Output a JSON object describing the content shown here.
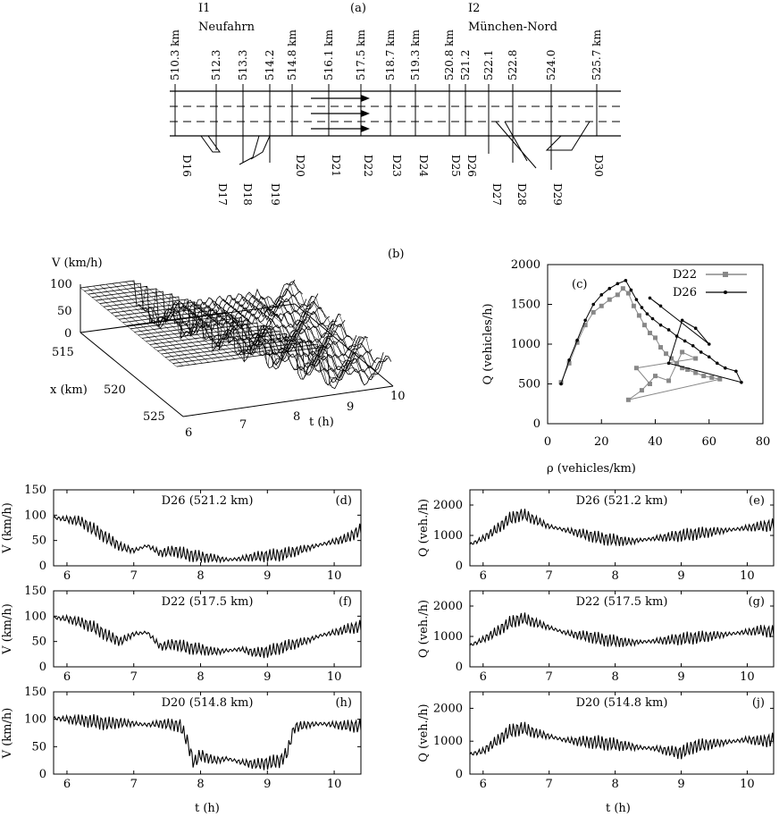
{
  "chart_data": [
    {
      "panel": "(a)",
      "type": "table",
      "intersections": [
        {
          "name": "I1",
          "label": "Neufahrn"
        },
        {
          "name": "I2",
          "label": "München-Nord"
        }
      ],
      "km_labels": [
        "510.3 km",
        "512.3",
        "513.3",
        "514.2",
        "514.8 km",
        "516.1 km",
        "517.5 km",
        "518.7 km",
        "519.3 km",
        "520.8 km",
        "521.2",
        "522.1",
        "522.8",
        "524.0",
        "525.7 km"
      ],
      "detectors": [
        "D16",
        "D17",
        "D18",
        "D19",
        "D20",
        "D21",
        "D22",
        "D23",
        "D24",
        "D25",
        "D26",
        "D27",
        "D28",
        "D29",
        "D30"
      ]
    },
    {
      "panel": "(b)",
      "type": "area",
      "zlabel": "V (km/h)",
      "ylabel": "x (km)",
      "xlabel": "t (h)",
      "z_ticks": [
        "0",
        "50",
        "100"
      ],
      "y_ticks": [
        "515",
        "520",
        "525"
      ],
      "x_ticks": [
        "6",
        "7",
        "8",
        "9",
        "10"
      ]
    },
    {
      "panel": "(c)",
      "type": "scatter",
      "xlabel": "ρ (vehicles/km)",
      "ylabel": "Q (vehicles/h)",
      "xlim": [
        0,
        80
      ],
      "ylim": [
        0,
        2000
      ],
      "x_ticks": [
        "0",
        "20",
        "40",
        "60",
        "80"
      ],
      "y_ticks": [
        "0",
        "500",
        "1000",
        "1500",
        "2000"
      ],
      "legend": "top-right",
      "series": [
        {
          "name": "D22",
          "color": "#888888",
          "points": [
            [
              5,
              520
            ],
            [
              8,
              760
            ],
            [
              11,
              1020
            ],
            [
              14,
              1240
            ],
            [
              17,
              1400
            ],
            [
              20,
              1480
            ],
            [
              23,
              1560
            ],
            [
              26,
              1620
            ],
            [
              28,
              1700
            ],
            [
              30,
              1640
            ],
            [
              32,
              1480
            ],
            [
              34,
              1360
            ],
            [
              36,
              1240
            ],
            [
              38,
              1140
            ],
            [
              40,
              1080
            ],
            [
              42,
              960
            ],
            [
              44,
              880
            ],
            [
              46,
              820
            ],
            [
              48,
              760
            ],
            [
              50,
              700
            ],
            [
              52,
              680
            ],
            [
              55,
              640
            ],
            [
              58,
              600
            ],
            [
              61,
              580
            ],
            [
              64,
              560
            ],
            [
              30,
              300
            ],
            [
              35,
              420
            ],
            [
              40,
              600
            ],
            [
              45,
              540
            ],
            [
              50,
              900
            ],
            [
              55,
              820
            ],
            [
              33,
              700
            ],
            [
              38,
              500
            ]
          ]
        },
        {
          "name": "D26",
          "color": "#000000",
          "points": [
            [
              5,
              500
            ],
            [
              8,
              800
            ],
            [
              11,
              1050
            ],
            [
              14,
              1300
            ],
            [
              17,
              1500
            ],
            [
              20,
              1620
            ],
            [
              23,
              1700
            ],
            [
              26,
              1760
            ],
            [
              29,
              1800
            ],
            [
              31,
              1680
            ],
            [
              33,
              1560
            ],
            [
              35,
              1460
            ],
            [
              37,
              1380
            ],
            [
              39,
              1320
            ],
            [
              42,
              1240
            ],
            [
              45,
              1180
            ],
            [
              48,
              1100
            ],
            [
              51,
              1040
            ],
            [
              54,
              980
            ],
            [
              57,
              900
            ],
            [
              60,
              840
            ],
            [
              63,
              760
            ],
            [
              66,
              700
            ],
            [
              70,
              660
            ],
            [
              72,
              520
            ],
            [
              45,
              760
            ],
            [
              50,
              1300
            ],
            [
              55,
              1200
            ],
            [
              60,
              1000
            ],
            [
              38,
              1580
            ],
            [
              42,
              1480
            ]
          ]
        }
      ]
    },
    {
      "panel": "(d)",
      "type": "line",
      "title": "D26 (521.2 km)",
      "ylabel": "V (km/h)",
      "xlabel": "",
      "xlim": [
        5.8,
        10.4
      ],
      "ylim": [
        0,
        150
      ],
      "y_ticks": [
        "0",
        "50",
        "100",
        "150"
      ],
      "x_ticks": [
        "6",
        "7",
        "8",
        "9",
        "10"
      ],
      "x": [
        5.8,
        6.0,
        6.2,
        6.4,
        6.6,
        6.8,
        7.0,
        7.2,
        7.4,
        7.6,
        7.8,
        8.0,
        8.2,
        8.4,
        8.6,
        8.8,
        9.0,
        9.2,
        9.4,
        9.6,
        9.8,
        10.0,
        10.2,
        10.4
      ],
      "y": [
        95,
        92,
        88,
        72,
        55,
        38,
        30,
        40,
        25,
        30,
        22,
        18,
        15,
        12,
        14,
        18,
        20,
        22,
        28,
        35,
        42,
        48,
        55,
        72
      ]
    },
    {
      "panel": "(e)",
      "type": "line",
      "title": "D26 (521.2 km)",
      "ylabel": "Q (veh./h)",
      "xlabel": "",
      "xlim": [
        5.8,
        10.4
      ],
      "ylim": [
        0,
        2500
      ],
      "y_ticks": [
        "0",
        "1000",
        "2000"
      ],
      "x_ticks": [
        "6",
        "7",
        "8",
        "9",
        "10"
      ],
      "x": [
        5.8,
        6.0,
        6.2,
        6.4,
        6.6,
        6.8,
        7.0,
        7.2,
        7.4,
        7.6,
        7.8,
        8.0,
        8.2,
        8.4,
        8.6,
        8.8,
        9.0,
        9.2,
        9.4,
        9.6,
        9.8,
        10.0,
        10.2,
        10.4
      ],
      "y": [
        700,
        900,
        1200,
        1550,
        1700,
        1500,
        1300,
        1200,
        1100,
        1000,
        900,
        850,
        800,
        850,
        900,
        950,
        1000,
        1050,
        1100,
        1150,
        1200,
        1250,
        1300,
        1350
      ]
    },
    {
      "panel": "(f)",
      "type": "line",
      "title": "D22 (517.5 km)",
      "ylabel": "V (km/h)",
      "xlabel": "",
      "xlim": [
        5.8,
        10.4
      ],
      "ylim": [
        0,
        150
      ],
      "y_ticks": [
        "0",
        "50",
        "100",
        "150"
      ],
      "x_ticks": [
        "6",
        "7",
        "8",
        "9",
        "10"
      ],
      "x": [
        5.8,
        6.0,
        6.2,
        6.4,
        6.6,
        6.8,
        7.0,
        7.2,
        7.4,
        7.6,
        7.8,
        8.0,
        8.2,
        8.4,
        8.6,
        8.8,
        9.0,
        9.2,
        9.4,
        9.6,
        9.8,
        10.0,
        10.2,
        10.4
      ],
      "y": [
        97,
        95,
        88,
        78,
        62,
        50,
        65,
        68,
        40,
        45,
        38,
        35,
        30,
        32,
        35,
        28,
        30,
        38,
        45,
        52,
        62,
        68,
        75,
        80
      ]
    },
    {
      "panel": "(g)",
      "type": "line",
      "title": "D22 (517.5 km)",
      "ylabel": "Q (veh./h)",
      "xlabel": "",
      "xlim": [
        5.8,
        10.4
      ],
      "ylim": [
        0,
        2500
      ],
      "y_ticks": [
        "0",
        "1000",
        "2000"
      ],
      "x_ticks": [
        "6",
        "7",
        "8",
        "9",
        "10"
      ],
      "x": [
        5.8,
        6.0,
        6.2,
        6.4,
        6.6,
        6.8,
        7.0,
        7.2,
        7.4,
        7.6,
        7.8,
        8.0,
        8.2,
        8.4,
        8.6,
        8.8,
        9.0,
        9.2,
        9.4,
        9.6,
        9.8,
        10.0,
        10.2,
        10.4
      ],
      "y": [
        700,
        900,
        1150,
        1450,
        1600,
        1450,
        1300,
        1150,
        1050,
        1000,
        900,
        850,
        800,
        820,
        850,
        880,
        920,
        960,
        1000,
        1050,
        1100,
        1150,
        1200,
        1150
      ]
    },
    {
      "panel": "(h)",
      "type": "line",
      "title": "D20 (514.8 km)",
      "ylabel": "V (km/h)",
      "xlabel": "t (h)",
      "xlim": [
        5.8,
        10.4
      ],
      "ylim": [
        0,
        150
      ],
      "y_ticks": [
        "0",
        "50",
        "100",
        "150"
      ],
      "x_ticks": [
        "6",
        "7",
        "8",
        "9",
        "10"
      ],
      "x": [
        5.8,
        6.0,
        6.2,
        6.4,
        6.6,
        6.8,
        7.0,
        7.2,
        7.4,
        7.6,
        7.7,
        7.8,
        7.9,
        8.0,
        8.2,
        8.4,
        8.6,
        8.8,
        9.0,
        9.2,
        9.3,
        9.4,
        9.6,
        9.8,
        10.0,
        10.2,
        10.4
      ],
      "y": [
        102,
        100,
        98,
        96,
        92,
        94,
        92,
        90,
        92,
        90,
        88,
        60,
        20,
        35,
        25,
        28,
        22,
        18,
        20,
        25,
        40,
        85,
        90,
        92,
        90,
        88,
        88
      ]
    },
    {
      "panel": "(j)",
      "type": "line",
      "title": "D20 (514.8 km)",
      "ylabel": "Q (veh./h)",
      "xlabel": "t (h)",
      "xlim": [
        5.8,
        10.4
      ],
      "ylim": [
        0,
        2500
      ],
      "y_ticks": [
        "0",
        "1000",
        "2000"
      ],
      "x_ticks": [
        "6",
        "7",
        "8",
        "9",
        "10"
      ],
      "x": [
        5.8,
        6.0,
        6.2,
        6.4,
        6.6,
        6.8,
        7.0,
        7.2,
        7.4,
        7.6,
        7.8,
        8.0,
        8.2,
        8.4,
        8.6,
        8.8,
        9.0,
        9.2,
        9.4,
        9.6,
        9.8,
        10.0,
        10.2,
        10.4
      ],
      "y": [
        600,
        700,
        1000,
        1300,
        1400,
        1250,
        1150,
        1050,
        1000,
        980,
        950,
        900,
        850,
        800,
        780,
        700,
        650,
        850,
        900,
        950,
        1000,
        1050,
        1000,
        1050
      ]
    }
  ]
}
